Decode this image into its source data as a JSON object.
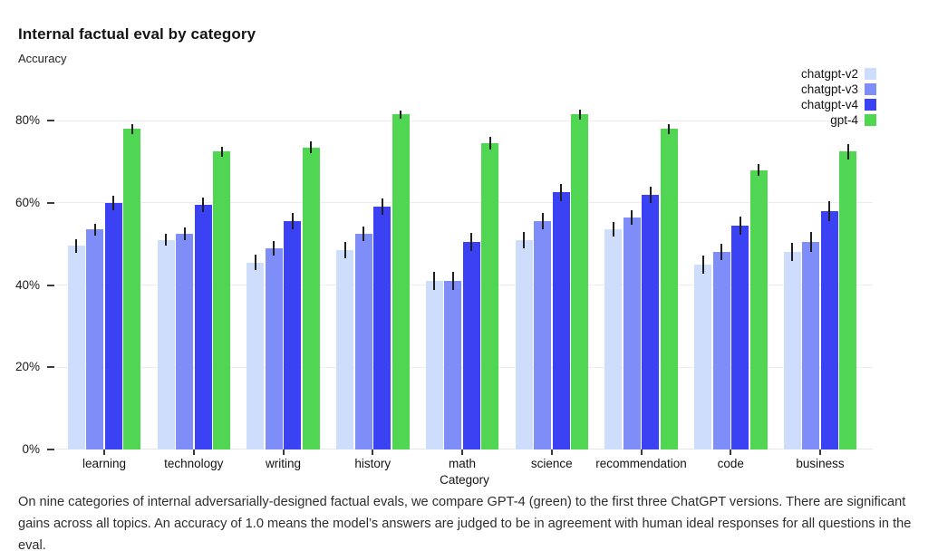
{
  "header": {
    "title": "Internal factual eval by category",
    "subtitle": "Accuracy"
  },
  "chart_data": {
    "type": "bar",
    "title": "Internal factual eval by category",
    "ylabel": "Accuracy",
    "xlabel": "Category",
    "categories": [
      "learning",
      "technology",
      "writing",
      "history",
      "math",
      "science",
      "recommendation",
      "code",
      "business"
    ],
    "series": [
      {
        "name": "chatgpt-v2",
        "color": "#cdddfb",
        "values": [
          49.5,
          51,
          45.5,
          48.5,
          41,
          51,
          53.5,
          45,
          48
        ],
        "errors": [
          1.7,
          1.4,
          1.9,
          1.9,
          2.3,
          2.0,
          1.8,
          2.2,
          2.2
        ]
      },
      {
        "name": "chatgpt-v3",
        "color": "#7e8df8",
        "values": [
          53.5,
          52.5,
          49,
          52.5,
          41,
          55.5,
          56.5,
          48,
          50.5
        ],
        "errors": [
          1.5,
          1.5,
          1.8,
          1.8,
          2.2,
          2.0,
          1.8,
          2.0,
          2.4
        ]
      },
      {
        "name": "chatgpt-v4",
        "color": "#3b42f3",
        "values": [
          60,
          59.5,
          55.5,
          59,
          50.5,
          62.5,
          62,
          54.5,
          58
        ],
        "errors": [
          1.8,
          1.8,
          2.0,
          2.0,
          2.2,
          2.2,
          2.0,
          2.2,
          2.5
        ]
      },
      {
        "name": "gpt-4",
        "color": "#50d653",
        "values": [
          78,
          72.5,
          73.5,
          81.5,
          74.5,
          81.5,
          78,
          68,
          72.5
        ],
        "errors": [
          1.2,
          1.2,
          1.5,
          1.0,
          1.5,
          1.2,
          1.2,
          1.5,
          1.9
        ]
      }
    ],
    "yticks": [
      "0%",
      "20%",
      "40%",
      "60%",
      "80%"
    ],
    "ytick_values": [
      0,
      20,
      40,
      60,
      80
    ],
    "ylim": [
      0,
      89.5
    ],
    "grid": true,
    "legend_position": "top-right",
    "error_bars": true
  },
  "caption": "On nine categories of internal adversarially-designed factual evals, we compare GPT-4 (green) to the first three ChatGPT versions. There are significant gains across all topics. An accuracy of 1.0 means the model’s answers are judged to be in agreement with human ideal responses for all questions in the eval."
}
